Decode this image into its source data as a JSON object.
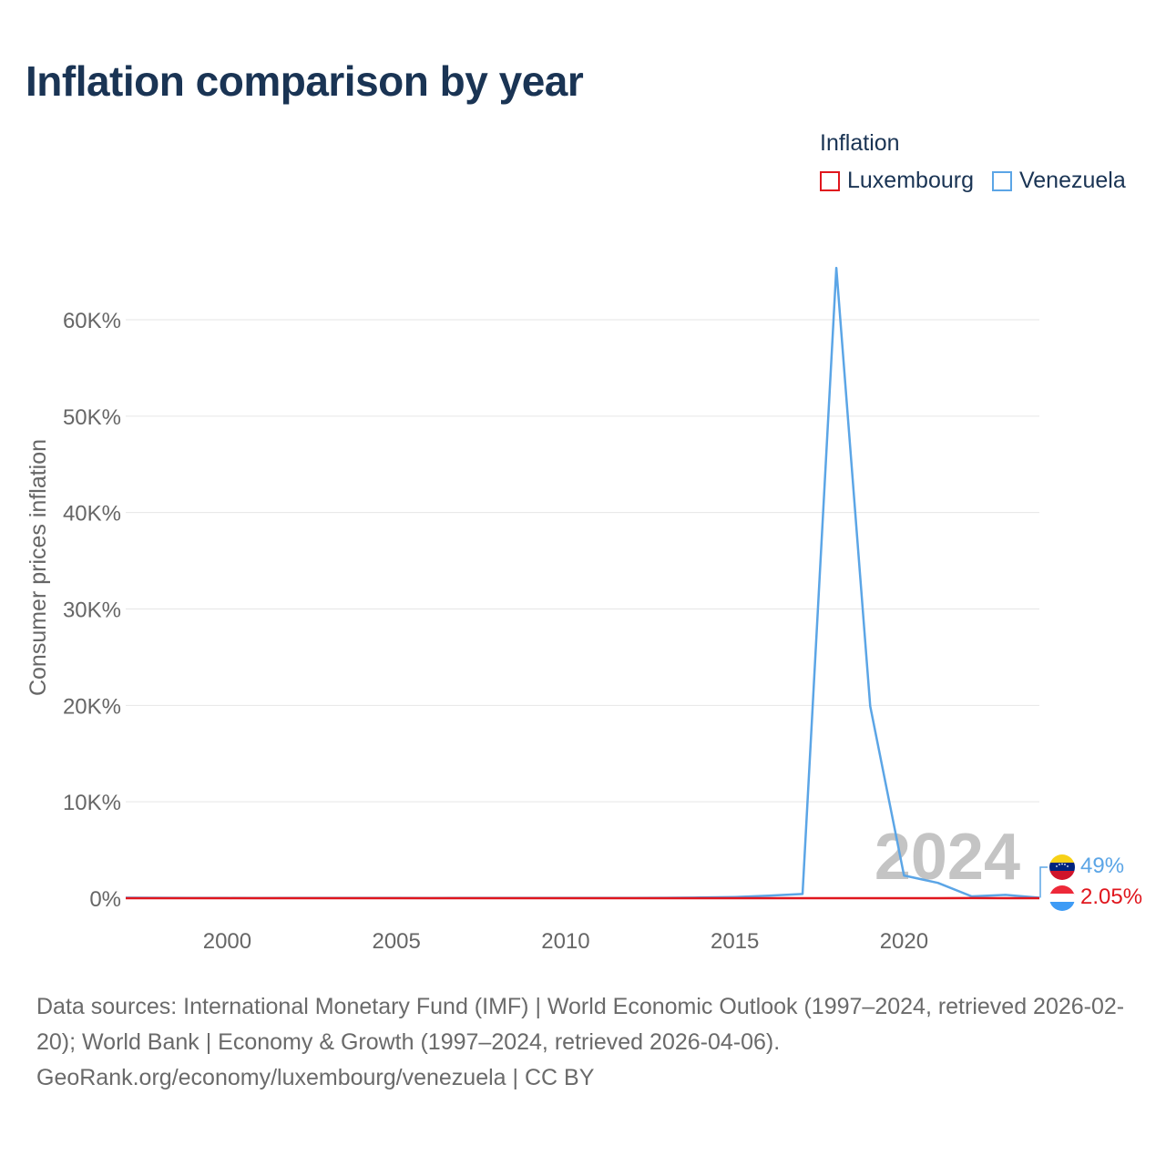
{
  "title": "Inflation comparison by year",
  "legend": {
    "title": "Inflation",
    "items": [
      {
        "label": "Luxembourg",
        "color": "#e0161d"
      },
      {
        "label": "Venezuela",
        "color": "#5ba5e6"
      }
    ]
  },
  "chart_data": {
    "type": "line",
    "title": "Inflation comparison by year",
    "xlabel": "",
    "ylabel": "Consumer prices inflation",
    "xlim": [
      1997,
      2024
    ],
    "ylim": [
      0,
      65000
    ],
    "y_ticks": [
      0,
      10000,
      20000,
      30000,
      40000,
      50000,
      60000
    ],
    "y_tick_labels": [
      "0%",
      "10K%",
      "20K%",
      "30K%",
      "40K%",
      "50K%",
      "60K%"
    ],
    "x_ticks": [
      2000,
      2005,
      2010,
      2015,
      2020
    ],
    "x_tick_labels": [
      "2000",
      "2005",
      "2010",
      "2015",
      "2020"
    ],
    "grid": true,
    "x": [
      1997,
      1998,
      1999,
      2000,
      2001,
      2002,
      2003,
      2004,
      2005,
      2006,
      2007,
      2008,
      2009,
      2010,
      2011,
      2012,
      2013,
      2014,
      2015,
      2016,
      2017,
      2018,
      2019,
      2020,
      2021,
      2022,
      2023,
      2024
    ],
    "series": [
      {
        "name": "Luxembourg",
        "color": "#e0161d",
        "values": [
          1.4,
          1.0,
          1.0,
          3.8,
          2.4,
          2.1,
          2.5,
          3.2,
          3.8,
          3.0,
          2.7,
          4.1,
          0.0,
          2.8,
          3.7,
          2.9,
          1.7,
          0.7,
          0.1,
          0.0,
          2.1,
          2.0,
          1.7,
          0.0,
          3.5,
          8.2,
          2.9,
          2.05
        ]
      },
      {
        "name": "Venezuela",
        "color": "#5ba5e6",
        "values": [
          50,
          36,
          24,
          16,
          12,
          22,
          31,
          22,
          16,
          14,
          19,
          31,
          27,
          28,
          26,
          21,
          41,
          62,
          122,
          255,
          438,
          65374,
          19906,
          2355,
          1588,
          186,
          337,
          49
        ]
      }
    ],
    "year_watermark": "2024",
    "end_labels": [
      {
        "series": "Venezuela",
        "label": "49%"
      },
      {
        "series": "Luxembourg",
        "label": "2.05%"
      }
    ]
  },
  "footer": {
    "sources": "Data sources: International Monetary Fund (IMF) | World Economic Outlook (1997–2024, retrieved 2026-02-20); World Bank | Economy & Growth (1997–2024, retrieved 2026-04-06).",
    "attribution": "GeoRank.org/economy/luxembourg/venezuela | CC BY"
  }
}
